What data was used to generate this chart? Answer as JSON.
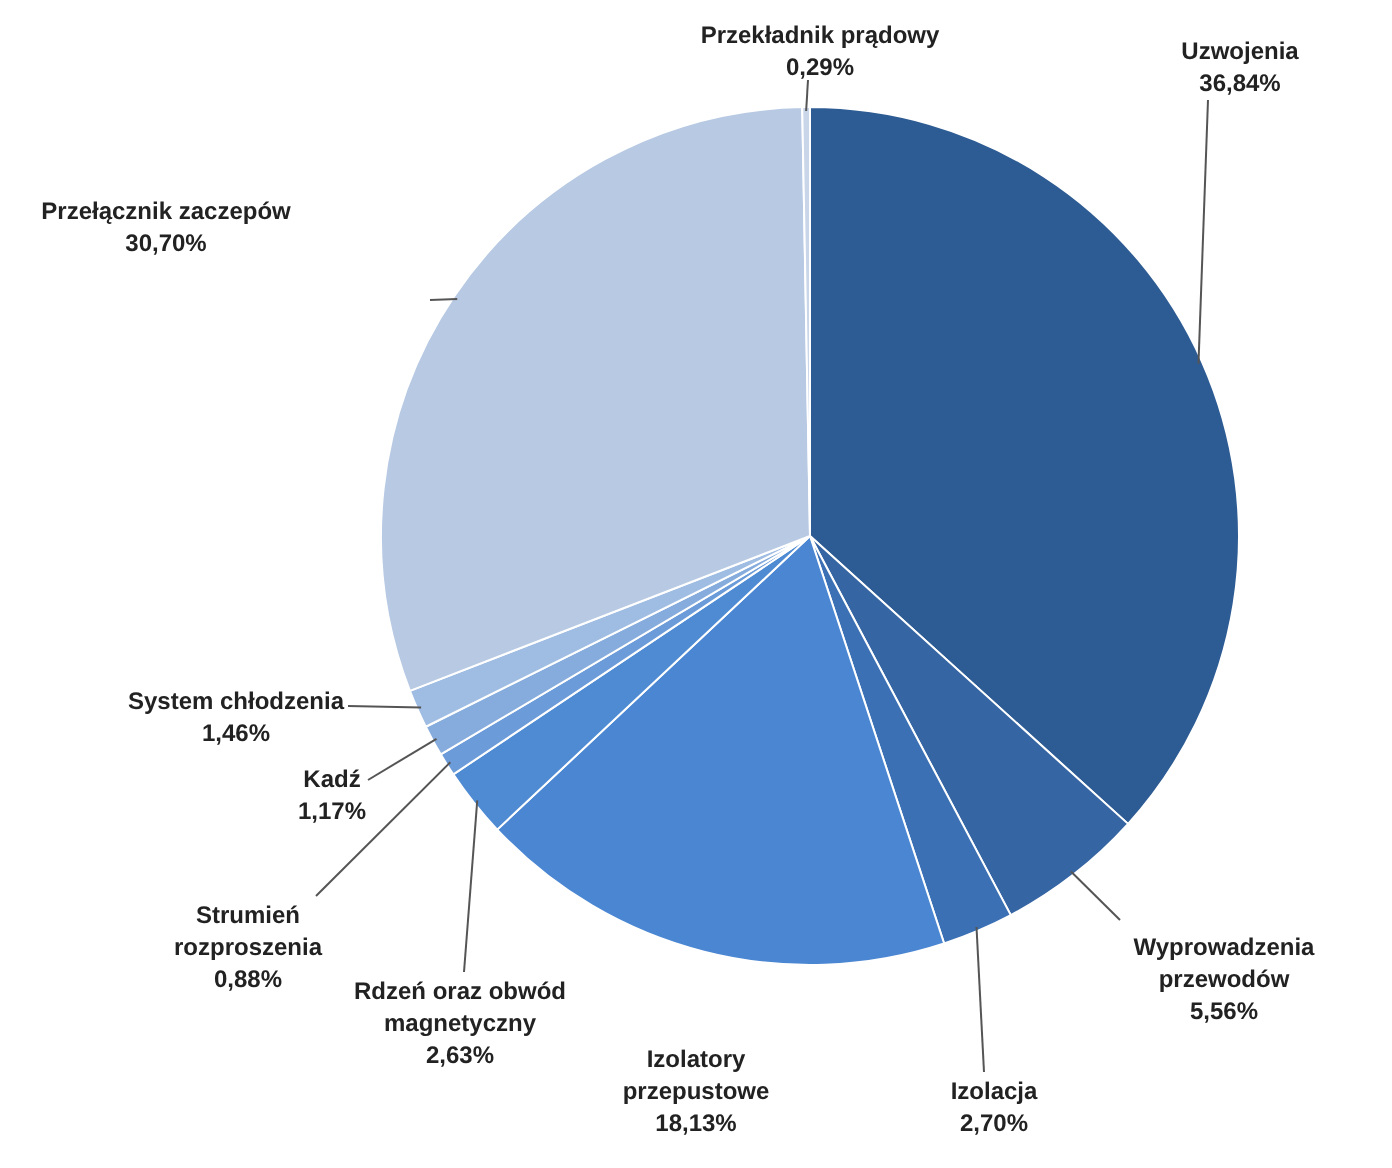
{
  "chart_data": {
    "type": "pie",
    "categories": [
      "Uzwojenia",
      "Wyprowadzenia przewodów",
      "Izolacja",
      "Izolatory przepustowe",
      "Rdzeń oraz obwód magnetyczny",
      "Strumień rozproszenia",
      "Kadź",
      "System chłodzenia",
      "Przełącznik zaczepów",
      "Przekładnik prądowy"
    ],
    "values": [
      36.84,
      5.56,
      2.7,
      18.13,
      2.63,
      0.88,
      1.17,
      1.46,
      30.7,
      0.29
    ],
    "value_labels": [
      "36,84%",
      "5,56%",
      "2,70%",
      "18,13%",
      "2,63%",
      "0,88%",
      "1,17%",
      "1,46%",
      "30,70%",
      "0,29%"
    ],
    "colors": [
      "#2d5b93",
      "#3565a3",
      "#3b70b5",
      "#4a86d2",
      "#4f8bd3",
      "#6b9bd8",
      "#86acdd",
      "#9fbce3",
      "#b7c9e3",
      "#c9d5e8"
    ],
    "legend": false
  }
}
